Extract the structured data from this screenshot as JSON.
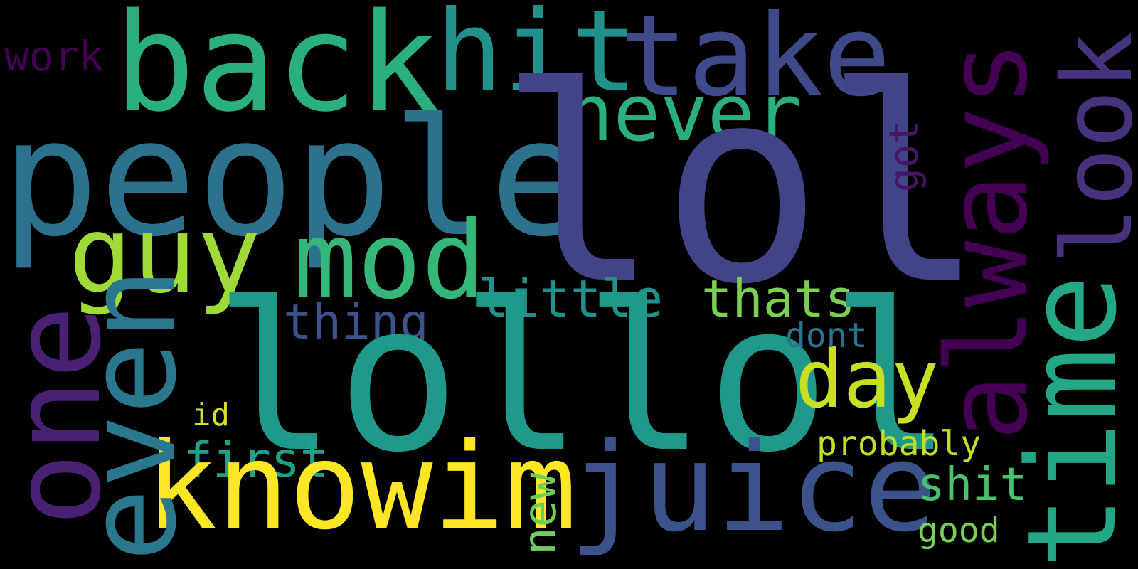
{
  "cloud": {
    "background": "#000000",
    "words": {
      "lol": {
        "text": "lol",
        "color": "#414487",
        "orientation": "horizontal"
      },
      "lollol": {
        "text": "lollol",
        "color": "#1f9a8a",
        "orientation": "horizontal"
      },
      "people": {
        "text": "people",
        "color": "#2c728e",
        "orientation": "horizontal"
      },
      "back": {
        "text": "back",
        "color": "#2ab07f",
        "orientation": "horizontal"
      },
      "knowim": {
        "text": "knowim",
        "color": "#fde725",
        "orientation": "horizontal"
      },
      "juice": {
        "text": "juice",
        "color": "#3b528b",
        "orientation": "horizontal"
      },
      "hit": {
        "text": "hit",
        "color": "#21918c",
        "orientation": "horizontal"
      },
      "take": {
        "text": "take",
        "color": "#3e4a89",
        "orientation": "horizontal"
      },
      "mod": {
        "text": "mod",
        "color": "#35b779",
        "orientation": "horizontal"
      },
      "guy": {
        "text": "guy",
        "color": "#a0da39",
        "orientation": "horizontal"
      },
      "never": {
        "text": "never",
        "color": "#2ab07f",
        "orientation": "horizontal"
      },
      "day": {
        "text": "day",
        "color": "#c8e020",
        "orientation": "horizontal"
      },
      "little": {
        "text": "little",
        "color": "#21918c",
        "orientation": "horizontal"
      },
      "thats": {
        "text": "thats",
        "color": "#7ad151",
        "orientation": "horizontal"
      },
      "thing": {
        "text": "thing",
        "color": "#3b528b",
        "orientation": "horizontal"
      },
      "first": {
        "text": "first",
        "color": "#1fa187",
        "orientation": "horizontal"
      },
      "dont": {
        "text": "dont",
        "color": "#2c728e",
        "orientation": "horizontal"
      },
      "probably": {
        "text": "probably",
        "color": "#c2df23",
        "orientation": "horizontal"
      },
      "shit": {
        "text": "shit",
        "color": "#4ac16d",
        "orientation": "horizontal"
      },
      "good": {
        "text": "good",
        "color": "#7ad151",
        "orientation": "horizontal"
      },
      "id": {
        "text": "id",
        "color": "#d8e219",
        "orientation": "horizontal"
      },
      "work": {
        "text": "work",
        "color": "#440154",
        "orientation": "horizontal"
      },
      "one": {
        "text": "one",
        "color": "#482173",
        "orientation": "vertical"
      },
      "even": {
        "text": "even",
        "color": "#2a788e",
        "orientation": "vertical"
      },
      "always": {
        "text": "always",
        "color": "#440154",
        "orientation": "vertical"
      },
      "time": {
        "text": "time",
        "color": "#22a884",
        "orientation": "vertical"
      },
      "look": {
        "text": "look",
        "color": "#46337e",
        "orientation": "vertical"
      },
      "got": {
        "text": "got",
        "color": "#481467",
        "orientation": "vertical"
      },
      "new": {
        "text": "new",
        "color": "#6ece58",
        "orientation": "vertical"
      }
    }
  }
}
